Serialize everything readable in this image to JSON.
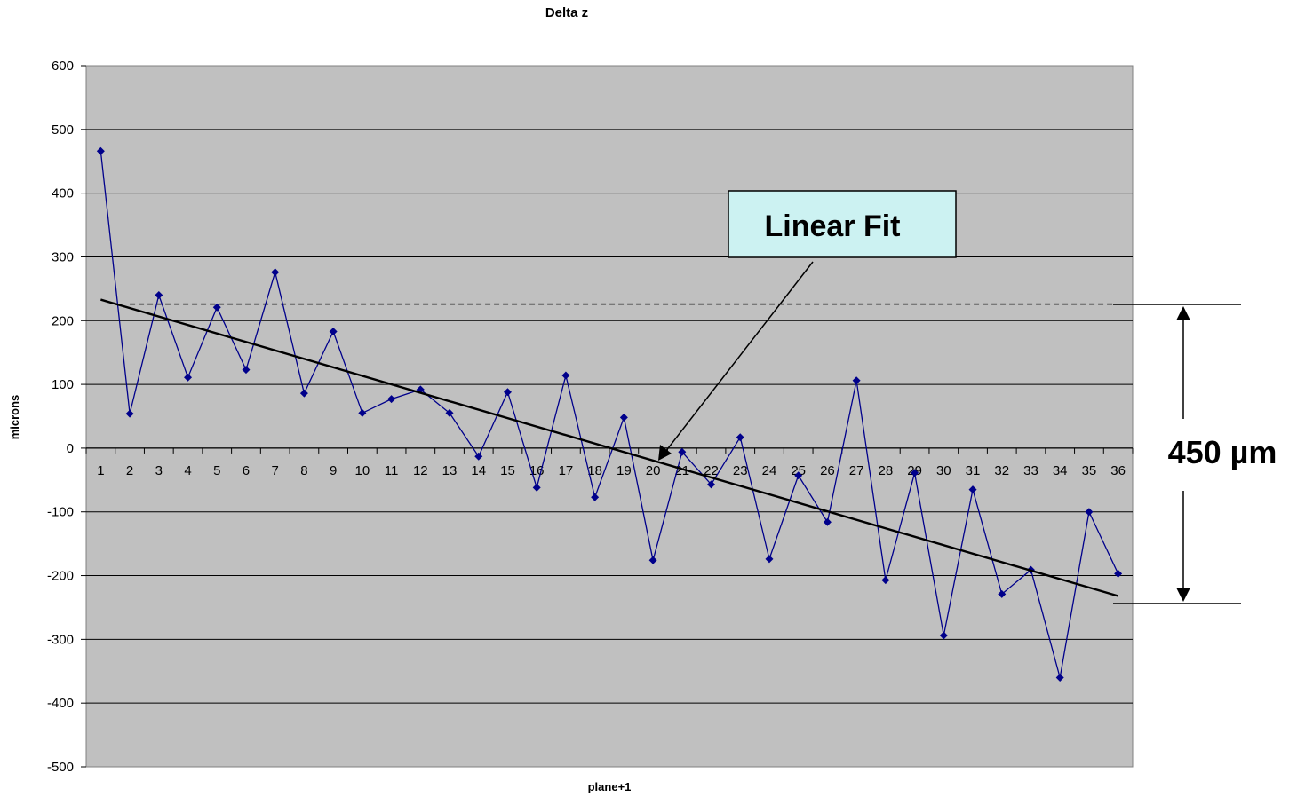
{
  "chart_data": {
    "type": "line",
    "title": "Delta z",
    "xlabel": "plane+1",
    "ylabel": "microns",
    "ylim": [
      -500,
      600
    ],
    "y_ticks": [
      600,
      500,
      400,
      300,
      200,
      100,
      0,
      -100,
      -200,
      -300,
      -400,
      -500
    ],
    "grid": "horizontal",
    "categories": [
      "1",
      "2",
      "3",
      "4",
      "5",
      "6",
      "7",
      "8",
      "9",
      "10",
      "11",
      "12",
      "13",
      "14",
      "15",
      "16",
      "17",
      "18",
      "19",
      "20",
      "21",
      "22",
      "23",
      "24",
      "25",
      "26",
      "27",
      "28",
      "29",
      "30",
      "31",
      "32",
      "33",
      "34",
      "35",
      "36"
    ],
    "series": [
      {
        "values": [
          466,
          54,
          240,
          111,
          221,
          123,
          276,
          86,
          183,
          55,
          77,
          92,
          55,
          -13,
          88,
          -62,
          114,
          -77,
          48,
          -176,
          -6,
          -57,
          17,
          -174,
          -43,
          -116,
          106,
          -207,
          -39,
          -294,
          -65,
          -229,
          -191,
          -360,
          -100,
          -197
        ],
        "color": "#00008B",
        "marker": "diamond"
      }
    ],
    "linear_fit": {
      "start": 233,
      "end": -232,
      "color": "#000000"
    },
    "reference_line": {
      "value": 226,
      "style": "dashed"
    },
    "annotations": {
      "callout_label": "Linear Fit",
      "dimension_label": "450 µm"
    },
    "colors": {
      "plot_background": "#C0C0C0",
      "gridline": "#000000",
      "callout_fill": "#CCF2F2"
    }
  }
}
